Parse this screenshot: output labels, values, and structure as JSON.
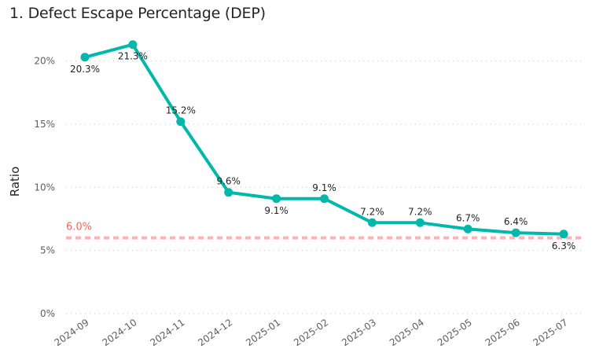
{
  "chart_data": {
    "type": "line",
    "title": "1. Defect Escape Percentage (DEP)",
    "xlabel": "",
    "ylabel": "Ratio",
    "ylim": [
      0,
      21.5
    ],
    "yticks": [
      0,
      5,
      10,
      15,
      20
    ],
    "ytick_labels": [
      "0%",
      "5%",
      "10%",
      "15%",
      "20%"
    ],
    "grid": true,
    "categories": [
      "2024-09",
      "2024-10",
      "2024-11",
      "2024-12",
      "2025-01",
      "2025-02",
      "2025-03",
      "2025-04",
      "2025-05",
      "2025-06",
      "2025-07"
    ],
    "series": [
      {
        "name": "DEP",
        "color": "#01b8aa",
        "values": [
          20.3,
          21.3,
          15.2,
          9.6,
          9.1,
          9.1,
          7.2,
          7.2,
          6.7,
          6.4,
          6.3
        ],
        "labels": [
          "20.3%",
          "21.3%",
          "15.2%",
          "9.6%",
          "9.1%",
          "9.1%",
          "7.2%",
          "7.2%",
          "6.7%",
          "6.4%",
          "6.3%"
        ],
        "label_positions": [
          "below",
          "below",
          "above",
          "above",
          "below",
          "above",
          "above",
          "above",
          "above",
          "above",
          "below"
        ]
      }
    ],
    "reference_line": {
      "value": 6.0,
      "label": "6.0%",
      "line_color": "#fbb4b4",
      "label_color": "#fd625e",
      "style": "dashed"
    }
  }
}
